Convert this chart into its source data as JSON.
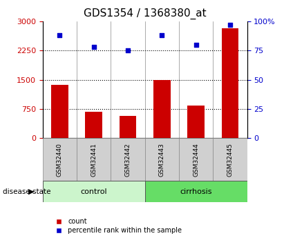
{
  "title": "GDS1354 / 1368380_at",
  "samples": [
    "GSM32440",
    "GSM32441",
    "GSM32442",
    "GSM32443",
    "GSM32444",
    "GSM32445"
  ],
  "count_values": [
    1370,
    680,
    570,
    1490,
    830,
    2820
  ],
  "percentile_values": [
    88,
    78,
    75,
    88,
    80,
    97
  ],
  "ylim_left": [
    0,
    3000
  ],
  "ylim_right": [
    0,
    100
  ],
  "yticks_left": [
    0,
    750,
    1500,
    2250,
    3000
  ],
  "ytick_labels_left": [
    "0",
    "750",
    "1500",
    "2250",
    "3000"
  ],
  "yticks_right": [
    0,
    25,
    50,
    75,
    100
  ],
  "ytick_labels_right": [
    "0",
    "25",
    "50",
    "75",
    "100%"
  ],
  "groups": [
    {
      "label": "control",
      "indices": [
        0,
        1,
        2
      ],
      "color": "#ccf5cc"
    },
    {
      "label": "cirrhosis",
      "indices": [
        3,
        4,
        5
      ],
      "color": "#66dd66"
    }
  ],
  "bar_color": "#cc0000",
  "dot_color": "#0000cc",
  "bar_width": 0.5,
  "grid_color": "black",
  "title_fontsize": 11,
  "tick_label_fontsize": 8,
  "axis_color_left": "#cc0000",
  "axis_color_right": "#0000cc",
  "legend_items": [
    "count",
    "percentile rank within the sample"
  ],
  "disease_state_label": "disease state"
}
